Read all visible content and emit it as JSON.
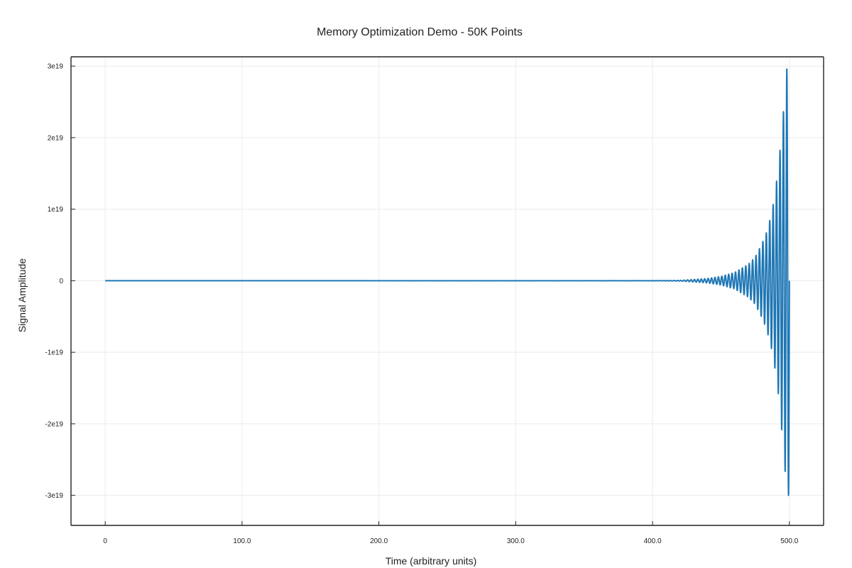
{
  "chart_data": {
    "type": "line",
    "title": "Memory Optimization Demo - 50K Points",
    "xlabel": "Time (arbitrary units)",
    "ylabel": "Signal Amplitude",
    "xlim": [
      -25,
      525
    ],
    "ylim": [
      -3.42e+19,
      3.13e+19
    ],
    "x_ticks": [
      0,
      100,
      200,
      300,
      400,
      500
    ],
    "x_tick_labels": [
      "0",
      "100.0",
      "200.0",
      "300.0",
      "400.0",
      "500.0"
    ],
    "y_ticks": [
      3e+19,
      2e+19,
      1e+19,
      0,
      -1e+19,
      -2e+19,
      -3e+19
    ],
    "y_tick_labels": [
      "3e19",
      "2e19",
      "1e19",
      "0",
      "-1e19",
      "-2e19",
      "-3e19"
    ],
    "grid": true,
    "legend": "none",
    "series": [
      {
        "color": "#1f77b4",
        "x": [
          0,
          400,
          420,
          440,
          450,
          460,
          470,
          475,
          480,
          483,
          486,
          488,
          490,
          492,
          494,
          496,
          498,
          499,
          500
        ],
        "envelope": [
          0,
          1e+16,
          4.5e+16,
          3e+17,
          6e+17,
          1.15e+18,
          2.3e+18,
          3.3e+18,
          5.2e+18,
          6.6e+18,
          8.7e+18,
          1.05e+19,
          1.3e+19,
          1.6e+19,
          2e+19,
          2.45e+19,
          2.95e+19,
          3.1e+19,
          2.85e+19
        ],
        "cycle_length": 2.5
      }
    ]
  }
}
